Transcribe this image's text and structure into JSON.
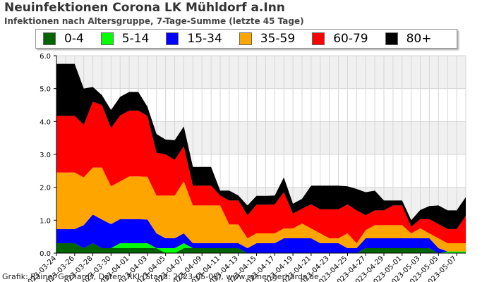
{
  "header": {
    "title": "Neuinfektionen Corona LK Mühldorf a.Inn",
    "subtitle": "Infektionen nach Altersgruppe, 7-Tage-Summe (letzte 45 Tage)"
  },
  "footer": {
    "credit": "Grafik: Rainer Gerhards, Daten: RKI (Stand: 2023-05-08), www.rainer-gerhards.de"
  },
  "chart_data": {
    "type": "area",
    "stacked": true,
    "title": "Neuinfektionen Corona LK Mühldorf a.Inn",
    "subtitle": "Infektionen nach Altersgruppe, 7-Tage-Summe (letzte 45 Tage)",
    "xlabel": "",
    "ylabel": "",
    "ylim": [
      0,
      6
    ],
    "yticks": [
      "0.0",
      "1.0",
      "2.0",
      "3.0",
      "4.0",
      "5.0",
      "6.0"
    ],
    "grid": "horizontal bands",
    "legend_position": "top",
    "x": [
      "2023-03-24",
      "2023-03-25",
      "2023-03-26",
      "2023-03-27",
      "2023-03-28",
      "2023-03-29",
      "2023-03-30",
      "2023-03-31",
      "2023-04-01",
      "2023-04-02",
      "2023-04-03",
      "2023-04-04",
      "2023-04-05",
      "2023-04-06",
      "2023-04-07",
      "2023-04-08",
      "2023-04-09",
      "2023-04-10",
      "2023-04-11",
      "2023-04-12",
      "2023-04-13",
      "2023-04-14",
      "2023-04-15",
      "2023-04-16",
      "2023-04-17",
      "2023-04-18",
      "2023-04-19",
      "2023-04-20",
      "2023-04-21",
      "2023-04-22",
      "2023-04-23",
      "2023-04-24",
      "2023-04-25",
      "2023-04-26",
      "2023-04-27",
      "2023-04-28",
      "2023-04-29",
      "2023-04-30",
      "2023-05-01",
      "2023-05-02",
      "2023-05-03",
      "2023-05-04",
      "2023-05-05",
      "2023-05-06",
      "2023-05-07",
      "2023-05-08"
    ],
    "tick_labels": [
      "2023-03-24",
      "2023-03-26",
      "2023-03-28",
      "2023-03-30",
      "2023-04-01",
      "2023-04-03",
      "2023-04-05",
      "2023-04-07",
      "2023-04-09",
      "2023-04-11",
      "2023-04-13",
      "2023-04-15",
      "2023-04-17",
      "2023-04-19",
      "2023-04-21",
      "2023-04-23",
      "2023-04-25",
      "2023-04-27",
      "2023-04-29",
      "2023-05-01",
      "2023-05-03",
      "2023-05-05",
      "2023-05-07"
    ],
    "series": [
      {
        "name": "0-4",
        "color": "#006400",
        "values": [
          0.3,
          0.3,
          0.3,
          0.15,
          0.3,
          0.15,
          0.15,
          0.15,
          0.15,
          0.15,
          0.15,
          0.15,
          0,
          0,
          0.15,
          0.15,
          0.15,
          0.15,
          0.15,
          0.15,
          0.15,
          0,
          0,
          0,
          0,
          0,
          0,
          0,
          0,
          0,
          0,
          0,
          0,
          0,
          0.15,
          0.15,
          0.15,
          0.15,
          0.15,
          0.15,
          0.15,
          0.15,
          0,
          0,
          0,
          0
        ]
      },
      {
        "name": "5-14",
        "color": "#00ff00",
        "values": [
          0,
          0,
          0,
          0,
          0,
          0,
          0,
          0.15,
          0.15,
          0.15,
          0.15,
          0,
          0.15,
          0.15,
          0.15,
          0,
          0,
          0,
          0,
          0,
          0,
          0,
          0,
          0,
          0,
          0,
          0,
          0,
          0,
          0,
          0,
          0,
          0,
          0,
          0,
          0,
          0,
          0,
          0,
          0,
          0,
          0,
          0,
          0.05,
          0.05,
          0.05
        ]
      },
      {
        "name": "15-34",
        "color": "#0000ff",
        "values": [
          0.43,
          0.43,
          0.43,
          0.7,
          0.87,
          0.87,
          0.73,
          0.73,
          0.73,
          0.73,
          0.72,
          0.45,
          0.3,
          0.3,
          0.3,
          0.15,
          0.15,
          0.15,
          0.15,
          0.15,
          0.15,
          0.15,
          0.3,
          0.3,
          0.3,
          0.45,
          0.45,
          0.45,
          0.45,
          0.3,
          0.3,
          0.3,
          0.15,
          0.15,
          0.3,
          0.3,
          0.3,
          0.3,
          0.3,
          0.3,
          0.3,
          0.3,
          0.15,
          0,
          0,
          0
        ]
      },
      {
        "name": "35-59",
        "color": "#ffa500",
        "values": [
          1.72,
          1.72,
          1.72,
          1.45,
          1.43,
          1.58,
          1.15,
          1.15,
          1.3,
          1.3,
          1.3,
          1.15,
          1.3,
          1.3,
          1.58,
          1.15,
          1.15,
          1.15,
          1.15,
          0.57,
          0.57,
          0.3,
          0.3,
          0.3,
          0.3,
          0.3,
          0.3,
          0.45,
          0.3,
          0.3,
          0.15,
          0.15,
          0.45,
          0.15,
          0.25,
          0.4,
          0.4,
          0.4,
          0.4,
          0.15,
          0.3,
          0.15,
          0.3,
          0.25,
          0.25,
          0.25
        ]
      },
      {
        "name": "60-79",
        "color": "#ff0000",
        "values": [
          1.72,
          1.72,
          1.72,
          1.6,
          2.0,
          1.9,
          1.77,
          2.0,
          2.0,
          2.0,
          1.85,
          1.3,
          1.25,
          1.08,
          1.07,
          0.6,
          0.6,
          0.6,
          0.3,
          0.73,
          0.73,
          0.7,
          0.87,
          0.87,
          0.88,
          1.1,
          0.45,
          0.45,
          0.73,
          0.73,
          0.88,
          0.88,
          0.88,
          1.0,
          0.45,
          0.45,
          0.45,
          0.6,
          0.6,
          0.2,
          0.28,
          0.43,
          0.43,
          0.43,
          0.43,
          0.83
        ]
      },
      {
        "name": "80+",
        "color": "#000000",
        "values": [
          1.58,
          1.58,
          1.58,
          1.1,
          0.45,
          0.3,
          0.55,
          0.57,
          0.57,
          0.57,
          0.28,
          0.57,
          0.45,
          0.6,
          0.6,
          0.57,
          0.57,
          0.57,
          0.15,
          0.3,
          0.15,
          0.3,
          0.27,
          0.27,
          0.27,
          0.45,
          0.3,
          0.3,
          0.57,
          0.72,
          0.72,
          0.72,
          0.55,
          0.65,
          0.7,
          0.6,
          0.3,
          0.15,
          0.15,
          0.2,
          0.28,
          0.4,
          0.57,
          0.57,
          0.57,
          0.57
        ]
      }
    ]
  }
}
